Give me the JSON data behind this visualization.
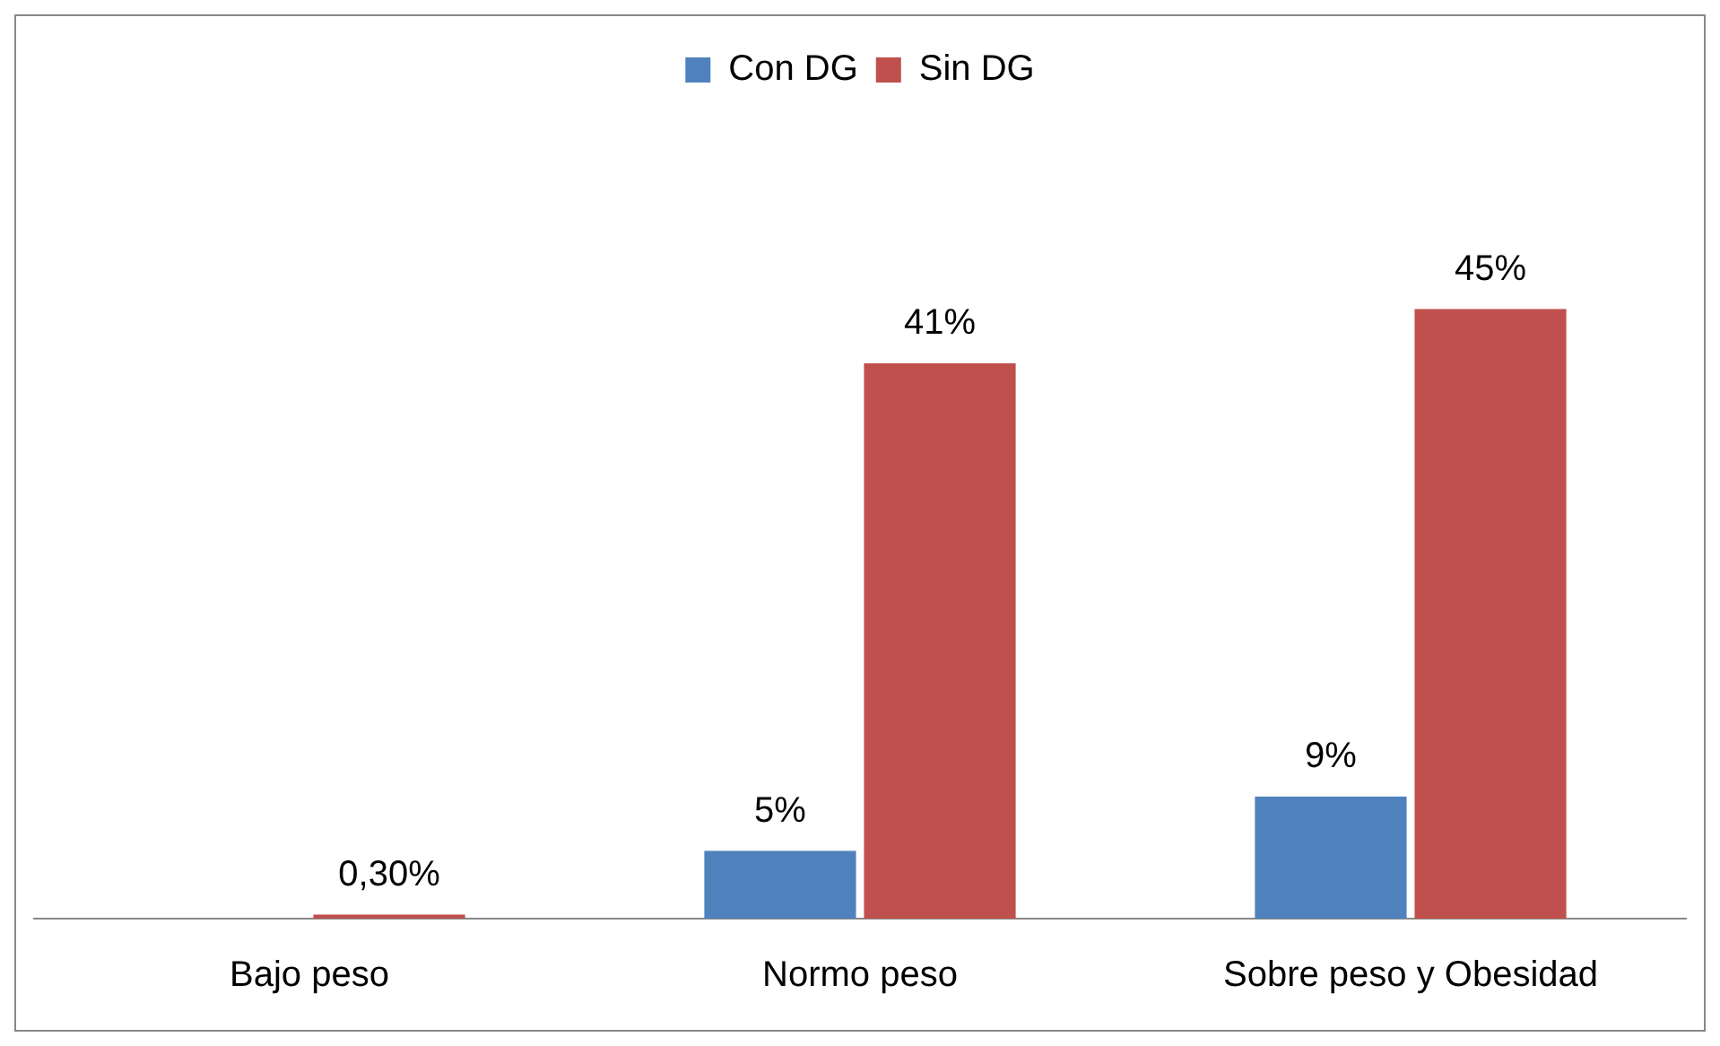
{
  "chart_data": {
    "type": "bar",
    "categories": [
      "Bajo peso",
      "Normo peso",
      "Sobre peso y Obesidad"
    ],
    "series": [
      {
        "name": "Con DG",
        "color": "#4f81bd",
        "values": [
          null,
          5,
          9
        ],
        "value_labels": [
          null,
          "5%",
          "9%"
        ]
      },
      {
        "name": "Sin DG",
        "color": "#c0504d",
        "values": [
          0.3,
          41,
          45
        ],
        "value_labels": [
          "0,30%",
          "41%",
          "45%"
        ]
      }
    ],
    "legend": "top"
  }
}
